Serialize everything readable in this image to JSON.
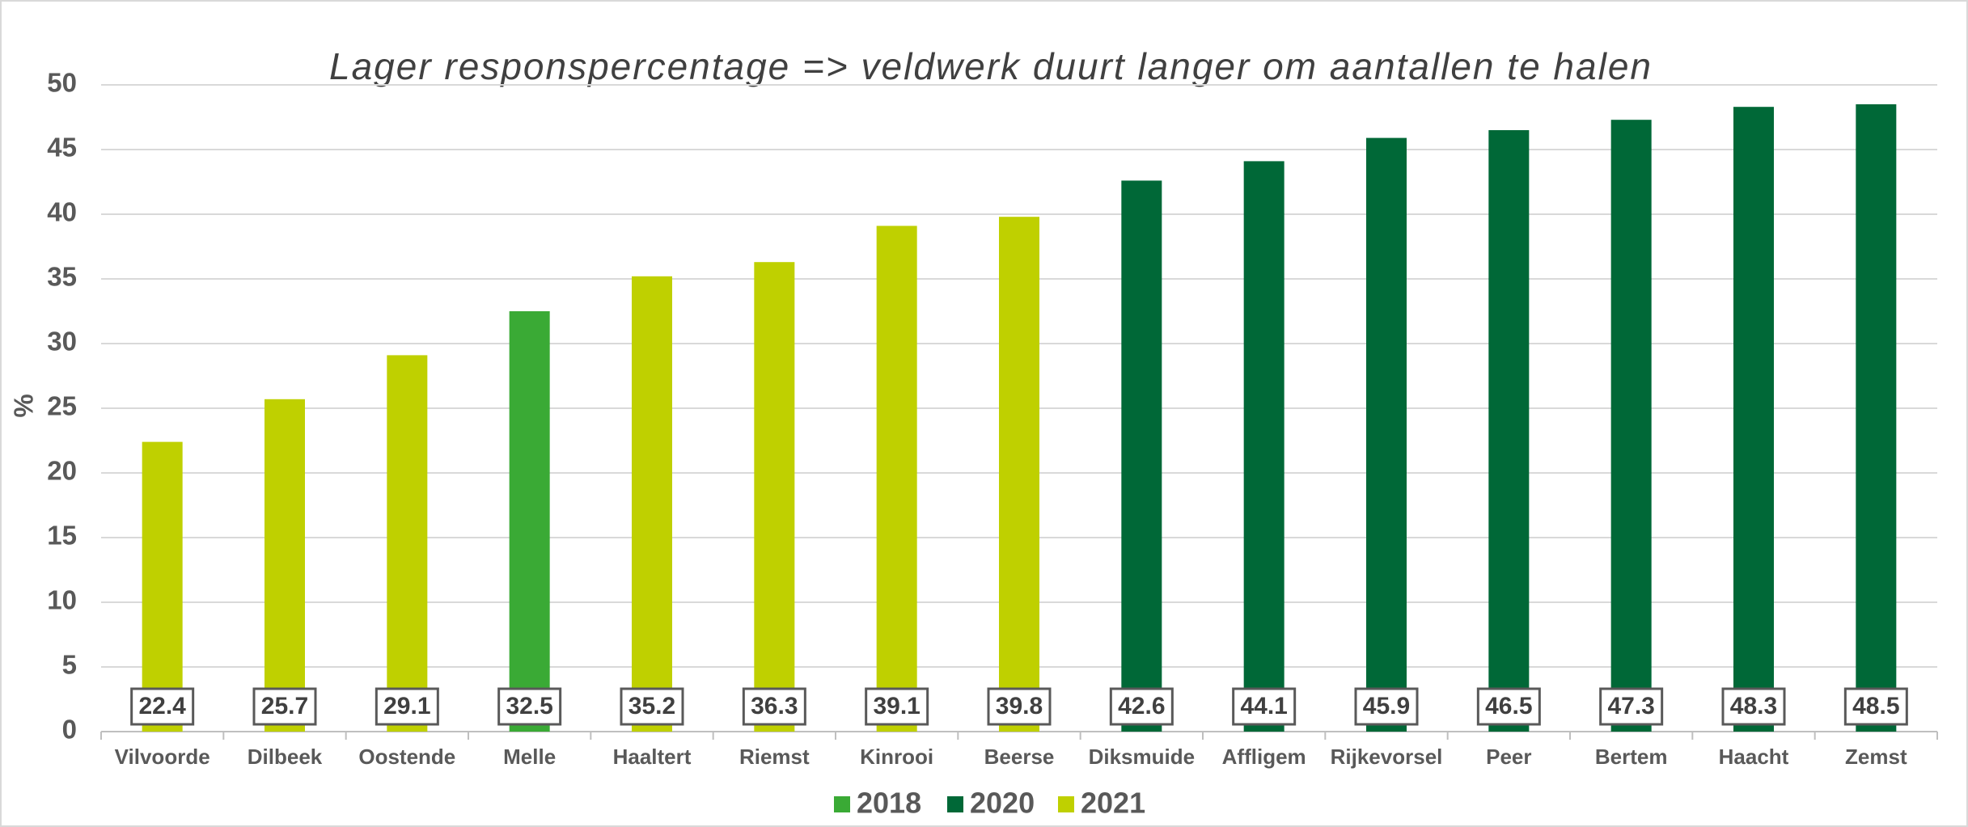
{
  "chart_data": {
    "type": "bar",
    "title": "Lager responspercentage => veldwerk duurt langer om aantallen te halen",
    "y_label": "%",
    "categories": [
      "Vilvoorde",
      "Dilbeek",
      "Oostende",
      "Melle",
      "Haaltert",
      "Riemst",
      "Kinrooi",
      "Beerse",
      "Diksmuide",
      "Affligem",
      "Rijkevorsel",
      "Peer",
      "Bertem",
      "Haacht",
      "Zemst"
    ],
    "series": [
      {
        "name": "2018",
        "color": "#3aaa35",
        "values": [
          null,
          null,
          null,
          32.5,
          null,
          null,
          null,
          null,
          null,
          null,
          null,
          null,
          null,
          null,
          null
        ]
      },
      {
        "name": "2020",
        "color": "#006837",
        "values": [
          null,
          null,
          null,
          null,
          null,
          null,
          null,
          null,
          42.6,
          44.1,
          45.9,
          46.5,
          47.3,
          48.3,
          48.5
        ]
      },
      {
        "name": "2021",
        "color": "#bfd000",
        "values": [
          22.4,
          25.7,
          29.1,
          null,
          35.2,
          36.3,
          39.1,
          39.8,
          null,
          null,
          null,
          null,
          null,
          null,
          null
        ]
      }
    ],
    "ylim": [
      0,
      50
    ],
    "yticks": [
      0,
      5,
      10,
      15,
      20,
      25,
      30,
      35,
      40,
      45,
      50
    ],
    "grid": true,
    "legend": "bottom"
  }
}
